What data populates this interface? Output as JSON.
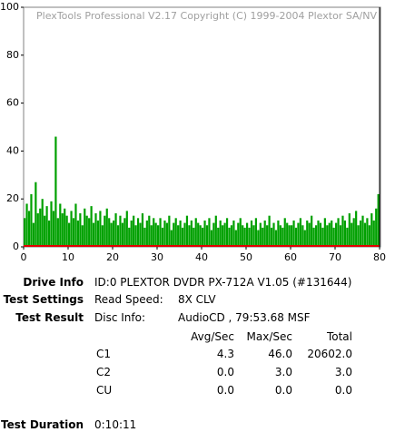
{
  "chart_data": {
    "type": "bar",
    "title": "PlexTools Professional V2.17 Copyright (C) 1999-2004 Plextor SA/NV",
    "color": "#00a000",
    "x": [
      0.5,
      1,
      1.5,
      2,
      2.5,
      3,
      3.5,
      4,
      4.5,
      5,
      5.5,
      6,
      6.5,
      7,
      7.5,
      8,
      8.5,
      9,
      9.5,
      10,
      10.5,
      11,
      11.5,
      12,
      12.5,
      13,
      13.5,
      14,
      14.5,
      15,
      15.5,
      16,
      16.5,
      17,
      17.5,
      18,
      18.5,
      19,
      19.5,
      20,
      20.5,
      21,
      21.5,
      22,
      22.5,
      23,
      23.5,
      24,
      24.5,
      25,
      25.5,
      26,
      26.5,
      27,
      27.5,
      28,
      28.5,
      29,
      29.5,
      30,
      30.5,
      31,
      31.5,
      32,
      32.5,
      33,
      33.5,
      34,
      34.5,
      35,
      35.5,
      36,
      36.5,
      37,
      37.5,
      38,
      38.5,
      39,
      39.5,
      40,
      40.5,
      41,
      41.5,
      42,
      42.5,
      43,
      43.5,
      44,
      44.5,
      45,
      45.5,
      46,
      46.5,
      47,
      47.5,
      48,
      48.5,
      49,
      49.5,
      50,
      50.5,
      51,
      51.5,
      52,
      52.5,
      53,
      53.5,
      54,
      54.5,
      55,
      55.5,
      56,
      56.5,
      57,
      57.5,
      58,
      58.5,
      59,
      59.5,
      60,
      60.5,
      61,
      61.5,
      62,
      62.5,
      63,
      63.5,
      64,
      64.5,
      65,
      65.5,
      66,
      66.5,
      67,
      67.5,
      68,
      68.5,
      69,
      69.5,
      70,
      70.5,
      71,
      71.5,
      72,
      72.5,
      73,
      73.5,
      74,
      74.5,
      75,
      75.5,
      76,
      76.5,
      77,
      77.5,
      78,
      78.5,
      79,
      79.5,
      80
    ],
    "values": [
      12,
      18,
      15,
      22,
      10,
      27,
      14,
      16,
      20,
      13,
      17,
      11,
      19,
      15,
      46,
      12,
      18,
      14,
      16,
      13,
      10,
      15,
      12,
      18,
      11,
      14,
      9,
      16,
      13,
      12,
      17,
      10,
      14,
      11,
      15,
      9,
      13,
      16,
      12,
      10,
      11,
      14,
      9,
      13,
      10,
      12,
      15,
      8,
      11,
      13,
      9,
      12,
      10,
      14,
      8,
      11,
      13,
      9,
      12,
      10,
      9,
      12,
      8,
      11,
      10,
      13,
      7,
      10,
      12,
      9,
      11,
      8,
      10,
      13,
      9,
      11,
      8,
      12,
      10,
      9,
      8,
      11,
      9,
      12,
      7,
      10,
      13,
      8,
      11,
      9,
      10,
      12,
      8,
      9,
      11,
      7,
      10,
      12,
      9,
      8,
      10,
      8,
      11,
      9,
      12,
      7,
      10,
      8,
      11,
      9,
      13,
      8,
      10,
      7,
      11,
      9,
      8,
      12,
      10,
      9,
      9,
      11,
      8,
      10,
      12,
      9,
      7,
      11,
      10,
      13,
      8,
      9,
      11,
      10,
      8,
      12,
      9,
      10,
      11,
      8,
      10,
      12,
      9,
      13,
      11,
      8,
      14,
      10,
      12,
      15,
      9,
      11,
      13,
      10,
      12,
      9,
      14,
      11,
      16,
      22
    ],
    "xlim": [
      0,
      80
    ],
    "xticks": [
      0,
      10,
      20,
      30,
      40,
      50,
      60,
      70,
      80
    ],
    "ylim": [
      0,
      100
    ],
    "yticks": [
      0,
      20,
      40,
      60,
      80,
      100
    ]
  },
  "info": {
    "drive_info": {
      "label": "Drive Info",
      "value": "ID:0 PLEXTOR DVDR PX-712A V1.05 (#131644)"
    },
    "test_settings": {
      "label": "Test Settings",
      "key": "Read Speed:",
      "value": "8X CLV"
    },
    "test_result": {
      "label": "Test Result",
      "key": "Disc Info:",
      "value": "AudioCD , 79:53.68 MSF"
    },
    "table": {
      "headers": [
        "Avg/Sec",
        "Max/Sec",
        "Total"
      ],
      "rows": [
        [
          "C1",
          "4.3",
          "46.0",
          "20602.0"
        ],
        [
          "C2",
          "0.0",
          "3.0",
          "3.0"
        ],
        [
          "CU",
          "0.0",
          "0.0",
          "0.0"
        ]
      ]
    },
    "test_duration": {
      "label": "Test Duration",
      "value": "0:10:11"
    }
  }
}
